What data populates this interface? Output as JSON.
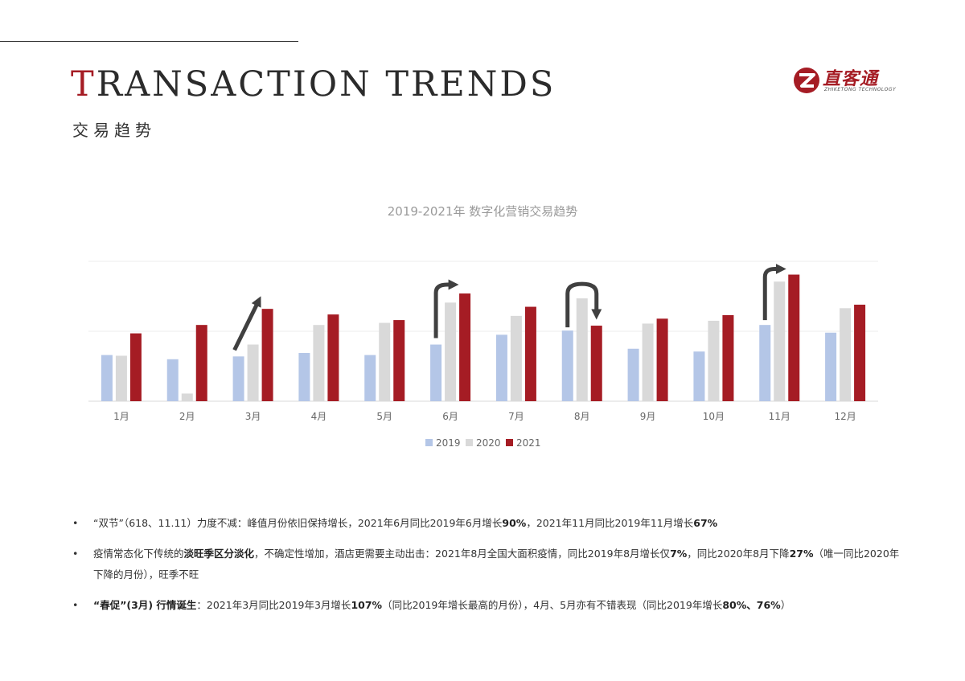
{
  "header": {
    "title_initial": "T",
    "title_rest": "RANSACTION TRENDS",
    "subtitle": "交易趋势",
    "logo_text": "直客通",
    "logo_sub": "ZHIKETONG TECHNOLOGY"
  },
  "chart_data": {
    "type": "bar",
    "title": "2019-2021年 数字化营销交易趋势",
    "categories": [
      "1月",
      "2月",
      "3月",
      "4月",
      "5月",
      "6月",
      "7月",
      "8月",
      "9月",
      "10月",
      "11月",
      "12月"
    ],
    "series": [
      {
        "name": "2019",
        "color": "#b4c6e7",
        "values": [
          3.3,
          3.0,
          3.2,
          3.45,
          3.3,
          4.05,
          4.75,
          5.05,
          3.75,
          3.55,
          5.45,
          4.9
        ]
      },
      {
        "name": "2020",
        "color": "#d9d9d9",
        "values": [
          3.25,
          0.55,
          4.05,
          5.45,
          5.6,
          7.05,
          6.1,
          7.35,
          5.55,
          5.75,
          8.55,
          6.65
        ]
      },
      {
        "name": "2021",
        "color": "#a51c24",
        "values": [
          4.85,
          5.45,
          6.6,
          6.2,
          5.8,
          7.7,
          6.75,
          5.4,
          5.9,
          6.15,
          9.05,
          6.9
        ]
      }
    ],
    "ylim": [
      0,
      10
    ],
    "grid": true,
    "legend": "bottom",
    "arrow_color": "#404040"
  },
  "bullets": [
    {
      "dot": "•",
      "parts": [
        {
          "t": "“双节”（618、11.11）力度不减：峰值月份依旧保持增长，2021年6月同比2019年6月增长",
          "b": false
        },
        {
          "t": "90%",
          "b": true
        },
        {
          "t": "，2021年11月同比2019年11月增长",
          "b": false
        },
        {
          "t": "67%",
          "b": true
        }
      ]
    },
    {
      "dot": "•",
      "parts": [
        {
          "t": "疫情常态化下传统的",
          "b": false
        },
        {
          "t": "淡旺季区分淡化",
          "b": true
        },
        {
          "t": "，不确定性增加，酒店更需要主动出击：2021年8月全国大面积疫情，同比2019年8月增长仅",
          "b": false
        },
        {
          "t": "7%",
          "b": true
        },
        {
          "t": "，同比2020年8月下降",
          "b": false
        },
        {
          "t": "27%",
          "b": true
        },
        {
          "t": "（唯一同比2020年下降的月份），旺季不旺",
          "b": false
        }
      ]
    },
    {
      "dot": "•",
      "parts": [
        {
          "t": "“春促”(3月) 行情诞生",
          "b": true
        },
        {
          "t": "：2021年3月同比2019年3月增长",
          "b": false
        },
        {
          "t": "107%",
          "b": true
        },
        {
          "t": "（同比2019年增长最高的月份），4月、5月亦有不错表现（同比2019年增长",
          "b": false
        },
        {
          "t": "80%、76%",
          "b": true
        },
        {
          "t": "）",
          "b": false
        }
      ]
    }
  ]
}
